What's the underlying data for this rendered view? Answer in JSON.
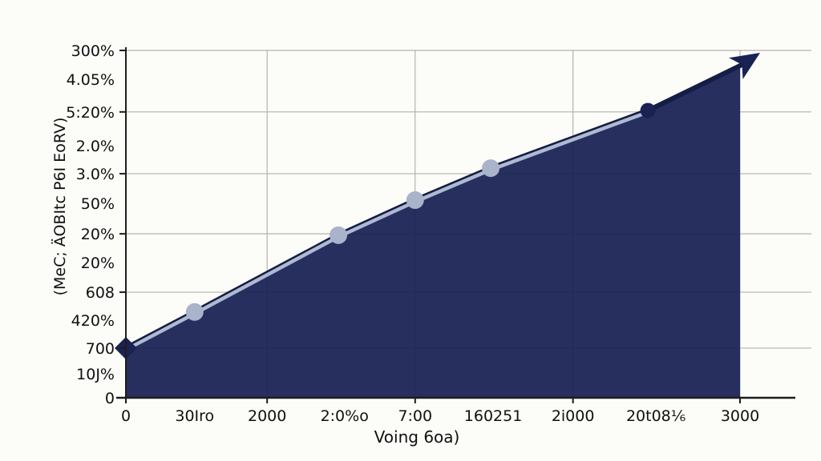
{
  "colors": {
    "background": "#fcfcf9",
    "area_fill": "#1a2254",
    "area_edge": "#151c45",
    "line_light": "#aeb9d2",
    "marker_light": "#a9b3c9",
    "marker_dark": "#1a2254",
    "grid": "#b5b2ad",
    "axis": "#1d1d1d",
    "text": "#101010"
  },
  "chart_data": {
    "type": "area",
    "title": "",
    "xlabel": "Voing 6oa)",
    "ylabel": "(MeC; ÄOBItc P6I EoRV)",
    "x_tick_labels": [
      "0",
      "30Iro",
      "2000",
      "2:0%o",
      "7:00",
      "160251",
      "2i000",
      "20t08⅙",
      "3000"
    ],
    "y_tick_labels": [
      "300%",
      "4.05%",
      "5:20%",
      "2.0%",
      "3.0%",
      "50%",
      "20%",
      "20%",
      "608",
      "420%",
      "700",
      "10J%",
      "0"
    ],
    "grid": true,
    "legend": false,
    "axis_note": "tick labels are garbled glyphs reproduced verbatim; y values below are fractions of plot height from the bottom axis, x values are fractions of plot width from the y-axis",
    "series": [
      {
        "name": "filled-trend-area",
        "kind": "area",
        "color": "#1a2254",
        "points": [
          {
            "x": 0.0,
            "y": 0.143
          },
          {
            "x": 0.112,
            "y": 0.247
          },
          {
            "x": 0.346,
            "y": 0.468
          },
          {
            "x": 0.471,
            "y": 0.569
          },
          {
            "x": 0.594,
            "y": 0.661
          },
          {
            "x": 0.85,
            "y": 0.827
          },
          {
            "x": 1.0,
            "y": 0.956
          }
        ]
      },
      {
        "name": "highlight-trend-line",
        "kind": "line",
        "color": "#aeb9d2",
        "points": [
          {
            "x": 0.0,
            "y": 0.143
          },
          {
            "x": 0.112,
            "y": 0.247
          },
          {
            "x": 0.346,
            "y": 0.468
          },
          {
            "x": 0.471,
            "y": 0.569
          },
          {
            "x": 0.594,
            "y": 0.661
          },
          {
            "x": 0.85,
            "y": 0.827
          }
        ]
      }
    ],
    "markers": [
      {
        "x": 0.0,
        "y": 0.143,
        "shape": "diamond",
        "color": "#1a2254"
      },
      {
        "x": 0.112,
        "y": 0.247,
        "shape": "circle",
        "color": "#a9b3c9"
      },
      {
        "x": 0.346,
        "y": 0.468,
        "shape": "circle",
        "color": "#a9b3c9"
      },
      {
        "x": 0.471,
        "y": 0.569,
        "shape": "circle",
        "color": "#a9b3c9"
      },
      {
        "x": 0.594,
        "y": 0.661,
        "shape": "circle",
        "color": "#a9b3c9"
      },
      {
        "x": 0.85,
        "y": 0.827,
        "shape": "circle",
        "color": "#1a2254"
      }
    ],
    "arrow_end": {
      "x": 1.03,
      "y": 0.99,
      "color": "#1a2254"
    }
  }
}
